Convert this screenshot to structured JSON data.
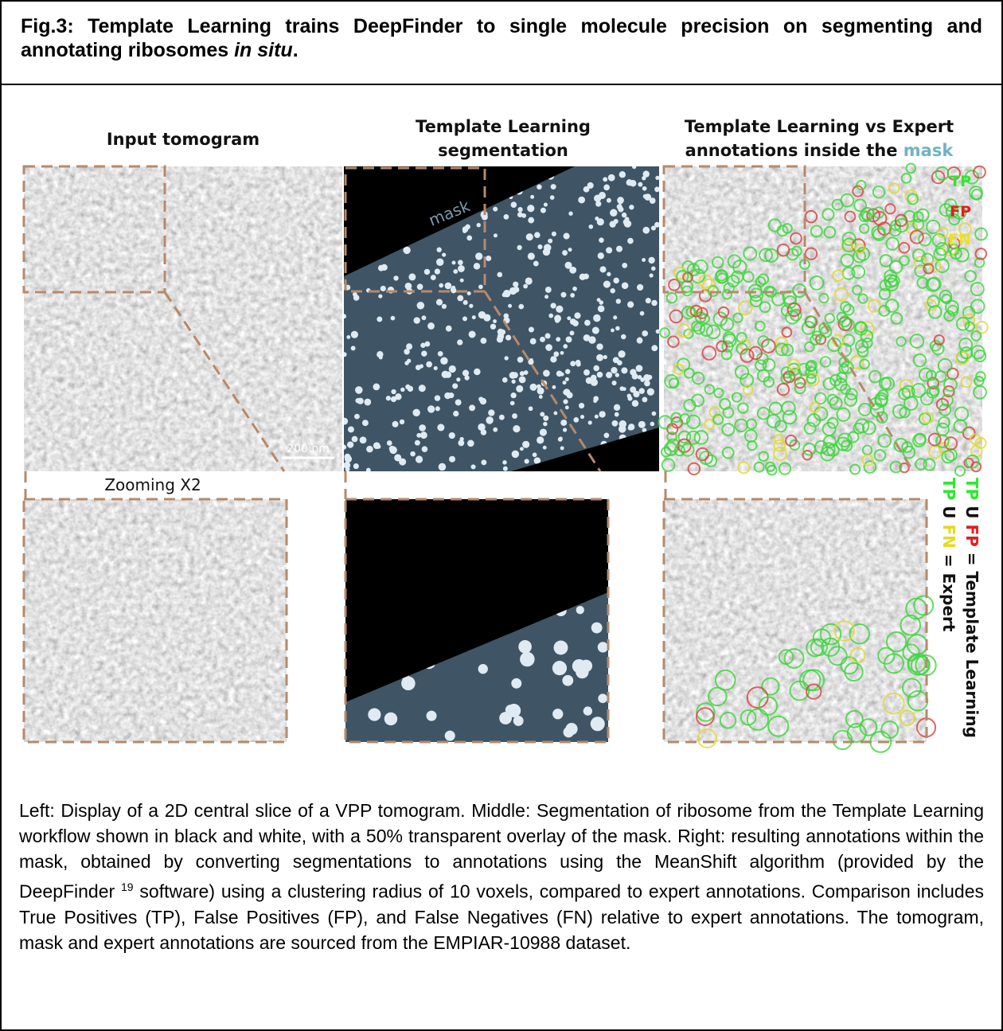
{
  "figure": {
    "title": [
      "Fig.3: Template Learning trains DeepFinder to single molecule precision on segmenting and annotating ribosomes ",
      "in situ",
      "."
    ],
    "headings": {
      "left": "Input tomogram",
      "middle": "Template Learning segmentation",
      "right": [
        "Template Learning vs Expert annotations inside the ",
        "mask"
      ]
    },
    "labels": {
      "scale_bar": "200 nm",
      "mask": "mask",
      "zoom": "Zooming X2",
      "tp": "TP",
      "fp": "FP",
      "fn": "FN"
    },
    "legend": [
      [
        "TP",
        " U ",
        "FP",
        " = Template Learning"
      ],
      [
        "TP",
        " U ",
        "FN",
        " = Expert"
      ]
    ],
    "caption": [
      "Left: Display of a 2D central slice of a VPP tomogram. Middle: Segmentation of ribosome from the Template Learning workflow shown in black and white, with a 50% transparent overlay of the mask. Right: resulting annotations within the mask, obtained by converting segmentations to annotations using the MeanShift algorithm (provided by the DeepFinder ",
      "19",
      " software) using a clustering radius of 10 voxels, compared to expert annotations. Comparison includes True Positives (TP), False Positives (FP), and False Negatives (FN) relative to expert annotations. The tomogram, mask and expert annotations are sourced from the EMPIAR-10988 dataset."
    ]
  }
}
